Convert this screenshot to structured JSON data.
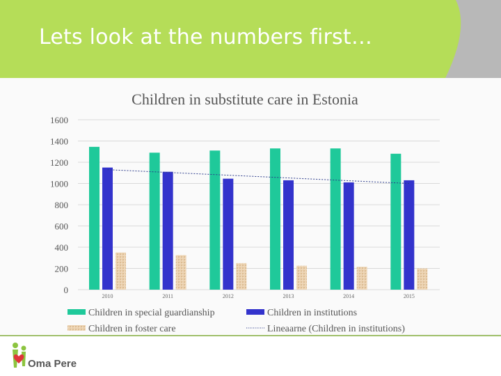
{
  "slide": {
    "title": "Lets look at the numbers first…",
    "colors": {
      "header_green": "#b5dd58",
      "header_gray": "#b8b8b8"
    }
  },
  "logo": {
    "text": "Oma Pere",
    "icon": "family-heart-icon"
  },
  "chart_data": {
    "type": "bar",
    "title": "Children in substitute care in Estonia",
    "categories": [
      "2010",
      "2011",
      "2012",
      "2013",
      "2014",
      "2015"
    ],
    "ylim": [
      0,
      1600
    ],
    "yticks": [
      0,
      200,
      400,
      600,
      800,
      1000,
      1200,
      1400,
      1600
    ],
    "grid": true,
    "legend_position": "bottom",
    "series": [
      {
        "name": "Children in special guardianship",
        "color": "#1fc99a",
        "values": [
          1345,
          1290,
          1310,
          1330,
          1330,
          1280
        ]
      },
      {
        "name": "Children in institutions",
        "color": "#3333cc",
        "values": [
          1150,
          1110,
          1045,
          1030,
          1010,
          1030
        ]
      },
      {
        "name": "Children in foster care",
        "color": "#e8ccaa",
        "values": [
          350,
          325,
          250,
          225,
          215,
          200
        ]
      }
    ],
    "trendline": {
      "name": "Lineaarne (Children in institutions)",
      "start": 1130,
      "end": 1000,
      "color": "#2a3a8a"
    }
  }
}
